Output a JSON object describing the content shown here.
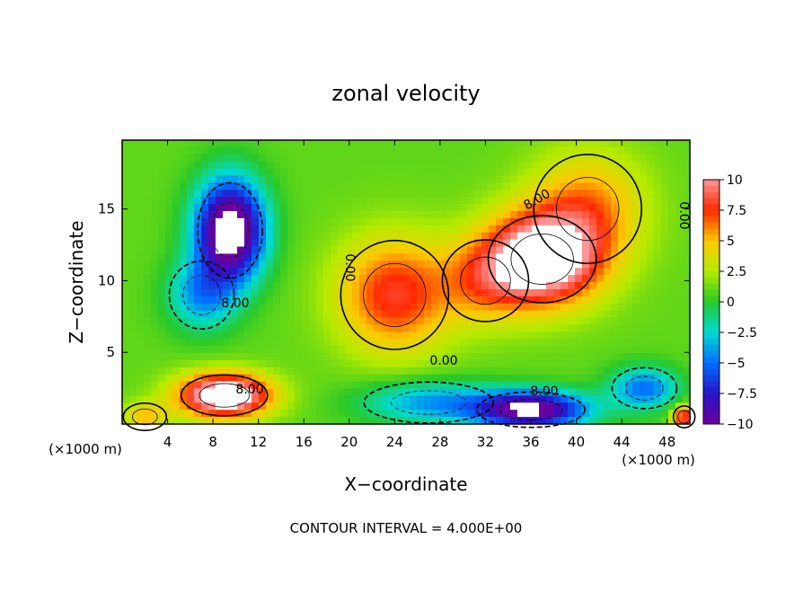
{
  "chart_data": {
    "type": "heatmap",
    "title": "zonal velocity",
    "xlabel": "X−coordinate",
    "ylabel": "Z−coordinate",
    "x_unit_left": "(×1000 m)",
    "x_unit_right": "(×1000 m)",
    "footer": "CONTOUR INTERVAL = 4.000E+00",
    "xlim": [
      0,
      50
    ],
    "ylim": [
      0,
      19.8
    ],
    "x_ticks": [
      4,
      8,
      12,
      16,
      20,
      24,
      28,
      32,
      36,
      40,
      44,
      48
    ],
    "y_ticks": [
      5,
      10,
      15
    ],
    "colorbar": {
      "range": [
        -10,
        10
      ],
      "ticks": [
        10,
        7.5,
        5,
        2.5,
        0,
        -2.5,
        -5,
        -7.5,
        -10
      ],
      "tick_labels": [
        "10",
        "7.5",
        "5",
        "2.5",
        "0",
        "−2.5",
        "−5",
        "−7.5",
        "−10"
      ]
    },
    "contour_labels": [
      "8.00",
      "0.00",
      "8.00",
      "8.00",
      "0.00",
      "0.00",
      "8.00"
    ],
    "features": [
      {
        "kind": "max",
        "x": 37,
        "z": 11.5,
        "amp": 12,
        "sx": 5,
        "sz": 3.2
      },
      {
        "kind": "max",
        "x": 41,
        "z": 15,
        "amp": 5,
        "sx": 5,
        "sz": 4
      },
      {
        "kind": "max",
        "x": 24,
        "z": 9,
        "amp": 7,
        "sx": 5,
        "sz": 4
      },
      {
        "kind": "max",
        "x": 32,
        "z": 10,
        "amp": 4,
        "sx": 4,
        "sz": 3
      },
      {
        "kind": "max",
        "x": 9,
        "z": 2,
        "amp": 13,
        "sx": 4,
        "sz": 1.5
      },
      {
        "kind": "max",
        "x": 2,
        "z": 0.5,
        "amp": 4,
        "sx": 2,
        "sz": 1
      },
      {
        "kind": "min",
        "x": 9.5,
        "z": 13.5,
        "amp": 14,
        "sx": 3,
        "sz": 3.5
      },
      {
        "kind": "min",
        "x": 7,
        "z": 9,
        "amp": 5,
        "sx": 3,
        "sz": 2.5
      },
      {
        "kind": "min",
        "x": 36,
        "z": 1,
        "amp": 12,
        "sx": 5,
        "sz": 1.3
      },
      {
        "kind": "min",
        "x": 27,
        "z": 1.5,
        "amp": 5,
        "sx": 6,
        "sz": 1.5
      },
      {
        "kind": "min",
        "x": 46,
        "z": 2.5,
        "amp": 6,
        "sx": 3,
        "sz": 1.5
      },
      {
        "kind": "max",
        "x": 49.5,
        "z": 0.5,
        "amp": 8,
        "sx": 1,
        "sz": 0.8
      }
    ],
    "background": 1
  }
}
